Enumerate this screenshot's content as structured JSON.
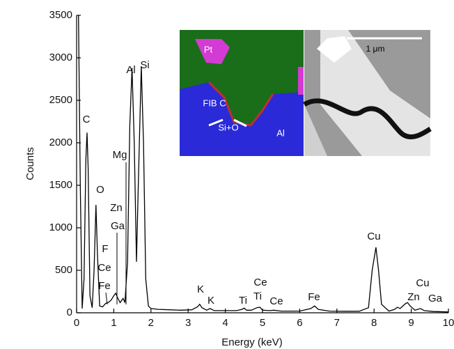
{
  "chart_data": {
    "type": "line",
    "xlabel": "Energy (keV)",
    "ylabel": "Counts",
    "xlim": [
      0,
      10
    ],
    "ylim": [
      0,
      3500
    ],
    "xticks": [
      0,
      1,
      2,
      3,
      4,
      5,
      6,
      7,
      8,
      9,
      10
    ],
    "yticks": [
      0,
      500,
      1000,
      1500,
      2000,
      2500,
      3000,
      3500
    ],
    "x": [
      0.05,
      0.1,
      0.15,
      0.2,
      0.25,
      0.28,
      0.31,
      0.36,
      0.42,
      0.47,
      0.52,
      0.56,
      0.62,
      0.7,
      0.78,
      0.85,
      0.93,
      1.0,
      1.05,
      1.1,
      1.17,
      1.25,
      1.3,
      1.37,
      1.43,
      1.49,
      1.55,
      1.61,
      1.66,
      1.74,
      1.8,
      1.86,
      1.93,
      2.0,
      2.2,
      2.5,
      2.8,
      3.1,
      3.25,
      3.31,
      3.37,
      3.5,
      3.59,
      3.7,
      4.0,
      4.3,
      4.45,
      4.51,
      4.57,
      4.7,
      4.85,
      4.93,
      5.0,
      5.2,
      5.3,
      5.5,
      6.0,
      6.3,
      6.4,
      6.5,
      6.8,
      7.2,
      7.6,
      7.85,
      7.95,
      8.05,
      8.12,
      8.2,
      8.4,
      8.55,
      8.63,
      8.7,
      8.85,
      8.9,
      8.97,
      9.1,
      9.25,
      9.35,
      9.6,
      10.0
    ],
    "series": [
      {
        "color": "#000000",
        "values": [
          3500,
          1500,
          50,
          400,
          1800,
          2120,
          1700,
          200,
          60,
          500,
          1270,
          700,
          80,
          70,
          110,
          120,
          150,
          200,
          230,
          180,
          120,
          170,
          120,
          600,
          2200,
          2880,
          2000,
          600,
          1500,
          2900,
          2000,
          400,
          80,
          50,
          40,
          35,
          30,
          35,
          70,
          100,
          60,
          30,
          50,
          25,
          25,
          25,
          40,
          55,
          30,
          30,
          60,
          65,
          30,
          25,
          30,
          20,
          20,
          50,
          80,
          40,
          20,
          18,
          18,
          60,
          500,
          770,
          500,
          100,
          20,
          40,
          65,
          50,
          110,
          120,
          80,
          30,
          50,
          25,
          15,
          10
        ]
      }
    ],
    "annotations": [
      "C",
      "O",
      "F",
      "Ce",
      "Fe",
      "Zn",
      "Ga",
      "Mg",
      "Al",
      "Si",
      "K",
      "K",
      "Ti",
      "Ce",
      "Ti",
      "Ce",
      "Fe",
      "Cu",
      "Zn",
      "Cu",
      "Ga"
    ],
    "inset_labels": [
      "Pt",
      "FIB C",
      "Si+O",
      "Al",
      "1 μm"
    ]
  }
}
